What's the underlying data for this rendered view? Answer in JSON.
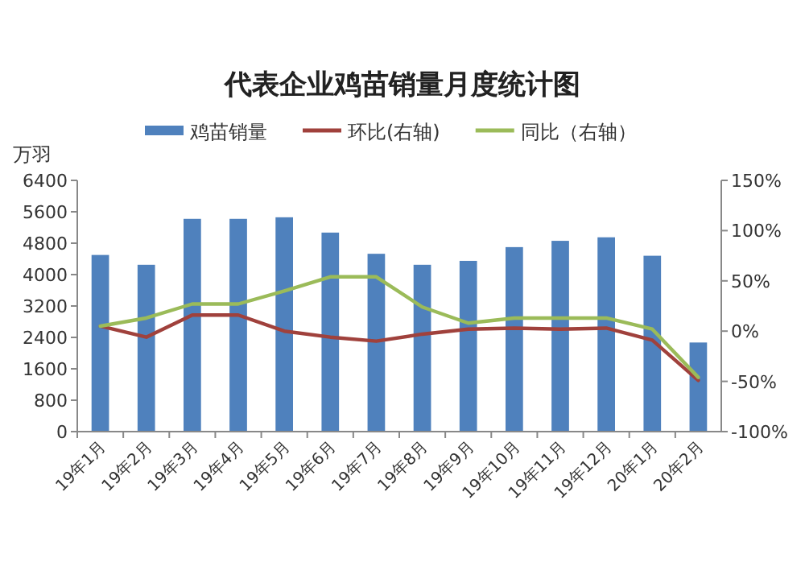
{
  "chart_data": {
    "type": "bar",
    "title": "代表企业鸡苗销量月度统计图",
    "ylabel": "万羽",
    "categories": [
      "19年1月",
      "19年2月",
      "19年3月",
      "19年4月",
      "19年5月",
      "19年6月",
      "19年7月",
      "19年8月",
      "19年9月",
      "19年10月",
      "19年11月",
      "19年12月",
      "20年1月",
      "20年2月"
    ],
    "series": [
      {
        "name": "鸡苗销量",
        "color": "#4f81bd",
        "values": [
          4500,
          4250,
          5420,
          5420,
          5460,
          5070,
          4530,
          4250,
          4350,
          4700,
          4860,
          4950,
          4480,
          2270
        ]
      },
      {
        "name": "环比(右轴)",
        "type": "line",
        "axis": "y2",
        "color": "#a0413c",
        "values": [
          5,
          -6,
          16,
          16,
          0,
          -6,
          -10,
          -3,
          2,
          3,
          2,
          3,
          -9,
          -49
        ]
      },
      {
        "name": "同比（右轴）",
        "type": "line",
        "axis": "y2",
        "color": "#9bbb59",
        "values": [
          5,
          13,
          27,
          27,
          40,
          54,
          54,
          24,
          8,
          13,
          13,
          13,
          2,
          -46
        ]
      }
    ],
    "ylim": [
      0,
      6400
    ],
    "yticks": [
      0,
      800,
      1600,
      2400,
      3200,
      4000,
      4800,
      5600,
      6400
    ],
    "y2lim": [
      -100,
      150
    ],
    "y2ticks": [
      {
        "value": -100,
        "label": "-100%"
      },
      {
        "value": -50,
        "label": "-50%"
      },
      {
        "value": 0,
        "label": "0%"
      },
      {
        "value": 50,
        "label": "50%"
      },
      {
        "value": 100,
        "label": "100%"
      },
      {
        "value": 150,
        "label": "150%"
      }
    ],
    "legend": "top"
  }
}
